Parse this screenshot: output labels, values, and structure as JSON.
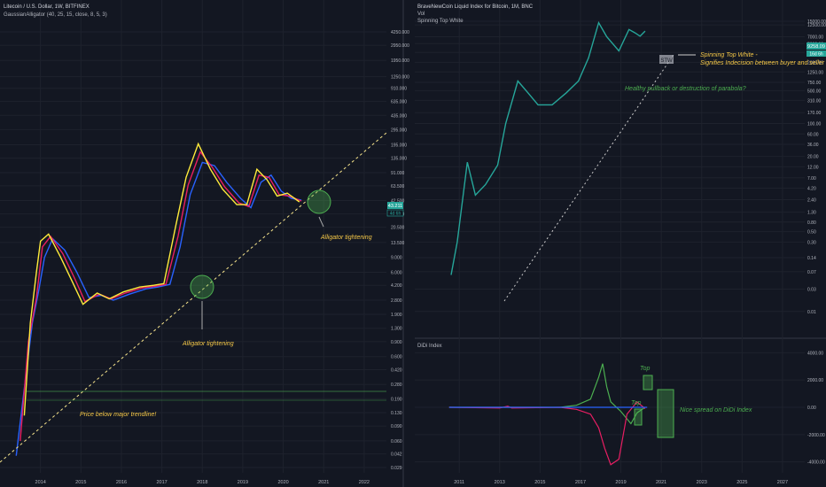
{
  "chart_data": [
    {
      "type": "line",
      "title": "Litecoin / U.S. Dollar, 1W, BITFINEX",
      "subtitle": "GaussianAlligator (40, 25, 15, close, 8, 5, 3)",
      "xlabel": "",
      "ylabel": "",
      "log_scale": true,
      "grid": true,
      "price_ticks": [
        "4250.000",
        "2950.000",
        "1950.000",
        "1250.000",
        "910.000",
        "635.000",
        "435.000",
        "295.000",
        "195.000",
        "135.000",
        "91.000",
        "63.500",
        "42.500",
        "29.500",
        "20.500",
        "13.500",
        "9.000",
        "6.000",
        "4.200",
        "2.800",
        "1.900",
        "1.300",
        "0.900",
        "0.600",
        "0.420",
        "0.280",
        "0.190",
        "0.130",
        "0.090",
        "0.060",
        "0.042",
        "0.029"
      ],
      "x_ticks": [
        "2014",
        "2015",
        "2016",
        "2017",
        "2018",
        "2019",
        "2020",
        "2021",
        "2022"
      ],
      "last_price": "43.211",
      "last_countdown": "4d 6h",
      "series": [
        {
          "name": "",
          "color": "#2962ff",
          "values": [
            [
              2013.4,
              0.04
            ],
            [
              2013.6,
              0.25
            ],
            [
              2013.8,
              1.5
            ],
            [
              2013.95,
              3.5
            ],
            [
              2014.1,
              9
            ],
            [
              2014.3,
              15
            ],
            [
              2014.6,
              11
            ],
            [
              2014.9,
              6
            ],
            [
              2015.2,
              3
            ],
            [
              2015.5,
              3.2
            ],
            [
              2015.8,
              2.8
            ],
            [
              2016.2,
              3.3
            ],
            [
              2016.6,
              3.8
            ],
            [
              2016.9,
              4.0
            ],
            [
              2017.2,
              4.3
            ],
            [
              2017.45,
              12
            ],
            [
              2017.7,
              50
            ],
            [
              2018.0,
              120
            ],
            [
              2018.3,
              110
            ],
            [
              2018.6,
              70
            ],
            [
              2018.95,
              45
            ],
            [
              2019.2,
              35
            ],
            [
              2019.45,
              70
            ],
            [
              2019.7,
              85
            ],
            [
              2019.95,
              55
            ],
            [
              2020.2,
              45
            ],
            [
              2020.45,
              43
            ]
          ]
        },
        {
          "name": "",
          "color": "#e91e63",
          "values": [
            [
              2013.5,
              0.06
            ],
            [
              2013.7,
              0.9
            ],
            [
              2013.9,
              3
            ],
            [
              2014.05,
              12
            ],
            [
              2014.25,
              16
            ],
            [
              2014.55,
              10
            ],
            [
              2014.85,
              5
            ],
            [
              2015.1,
              2.7
            ],
            [
              2015.45,
              3.3
            ],
            [
              2015.75,
              2.9
            ],
            [
              2016.1,
              3.4
            ],
            [
              2016.5,
              3.9
            ],
            [
              2016.85,
              4.1
            ],
            [
              2017.1,
              4.3
            ],
            [
              2017.4,
              16
            ],
            [
              2017.65,
              65
            ],
            [
              2017.95,
              160
            ],
            [
              2018.25,
              105
            ],
            [
              2018.55,
              62
            ],
            [
              2018.9,
              40
            ],
            [
              2019.15,
              36
            ],
            [
              2019.4,
              85
            ],
            [
              2019.65,
              80
            ],
            [
              2019.9,
              50
            ],
            [
              2020.15,
              48
            ],
            [
              2020.45,
              42
            ]
          ]
        },
        {
          "name": "",
          "color": "#ffeb3b",
          "values": [
            [
              2013.6,
              0.12
            ],
            [
              2013.75,
              1.5
            ],
            [
              2013.9,
              6
            ],
            [
              2014.0,
              14
            ],
            [
              2014.2,
              17
            ],
            [
              2014.5,
              9
            ],
            [
              2014.8,
              4.5
            ],
            [
              2015.05,
              2.5
            ],
            [
              2015.4,
              3.4
            ],
            [
              2015.7,
              2.9
            ],
            [
              2016.05,
              3.5
            ],
            [
              2016.45,
              4.0
            ],
            [
              2016.8,
              4.2
            ],
            [
              2017.05,
              4.4
            ],
            [
              2017.35,
              22
            ],
            [
              2017.6,
              80
            ],
            [
              2017.9,
              200
            ],
            [
              2018.2,
              100
            ],
            [
              2018.5,
              58
            ],
            [
              2018.85,
              38
            ],
            [
              2019.1,
              38
            ],
            [
              2019.35,
              100
            ],
            [
              2019.6,
              75
            ],
            [
              2019.85,
              48
            ],
            [
              2020.1,
              52
            ],
            [
              2020.4,
              41
            ]
          ]
        }
      ],
      "annotations": [
        "Alligator tightening",
        "Alligator tightening",
        "Price below major trendline!"
      ]
    },
    {
      "type": "line",
      "title": "BraveNewCoin Liquid Index for Bitcoin, 1M, BNC",
      "subtitle": "Vol",
      "legend_extra": "Spinning Top White",
      "log_scale": true,
      "grid": true,
      "price_ticks": [
        "15000.00",
        "12500.00",
        "7000.00",
        "5000.00",
        "3250.00",
        "2000.00",
        "1250.00",
        "750.00",
        "500.00",
        "310.00",
        "170.00",
        "100.00",
        "60.00",
        "36.00",
        "20.00",
        "12.00",
        "7.00",
        "4.20",
        "2.40",
        "1.30",
        "0.80",
        "0.50",
        "0.30",
        "0.14",
        "0.07",
        "0.03",
        "0.01"
      ],
      "x_ticks": [
        "2011",
        "2013",
        "2015",
        "2017",
        "2019",
        "2021",
        "2023",
        "2025",
        "2027"
      ],
      "last_price": "9258.09",
      "last_countdown": "16d 6h",
      "marker_label": "STW",
      "series": [
        {
          "name": "",
          "color": "#26a69a",
          "values": [
            [
              2010.6,
              0.06
            ],
            [
              2010.9,
              0.3
            ],
            [
              2011.4,
              15
            ],
            [
              2011.8,
              3
            ],
            [
              2012.3,
              5
            ],
            [
              2012.9,
              13
            ],
            [
              2013.3,
              100
            ],
            [
              2013.9,
              800
            ],
            [
              2014.4,
              450
            ],
            [
              2014.9,
              250
            ],
            [
              2015.6,
              250
            ],
            [
              2016.3,
              450
            ],
            [
              2016.9,
              800
            ],
            [
              2017.4,
              2500
            ],
            [
              2017.9,
              14000
            ],
            [
              2018.3,
              7000
            ],
            [
              2018.9,
              3500
            ],
            [
              2019.4,
              10000
            ],
            [
              2019.7,
              8500
            ],
            [
              2019.95,
              7200
            ],
            [
              2020.2,
              9258
            ]
          ]
        }
      ],
      "annotations": [
        "Spinning Top White -",
        "Signifies Indecision between buyer and seller",
        "Healthy pullback or destruction of parabola?"
      ]
    },
    {
      "type": "line",
      "title": "DiDi Index",
      "y_ticks": [
        "4000.00",
        "2000.00",
        "0.00",
        "-2000.00",
        "-4000.00"
      ],
      "ylim": [
        -4800,
        4800
      ],
      "series": [
        {
          "name": "",
          "color": "#4caf50",
          "values": [
            [
              2010.5,
              0
            ],
            [
              2016.0,
              0
            ],
            [
              2016.8,
              150
            ],
            [
              2017.5,
              600
            ],
            [
              2017.9,
              2200
            ],
            [
              2018.1,
              3200
            ],
            [
              2018.3,
              1500
            ],
            [
              2018.5,
              400
            ],
            [
              2019.0,
              -300
            ],
            [
              2019.5,
              -1200
            ],
            [
              2019.8,
              -400
            ],
            [
              2020.2,
              0
            ]
          ]
        },
        {
          "name": "",
          "color": "#e91e63",
          "values": [
            [
              2010.5,
              0
            ],
            [
              2013.0,
              -50
            ],
            [
              2013.4,
              80
            ],
            [
              2013.6,
              -50
            ],
            [
              2016.0,
              0
            ],
            [
              2016.8,
              -150
            ],
            [
              2017.5,
              -500
            ],
            [
              2017.9,
              -1500
            ],
            [
              2018.2,
              -3000
            ],
            [
              2018.5,
              -4200
            ],
            [
              2018.9,
              -3800
            ],
            [
              2019.3,
              -500
            ],
            [
              2019.8,
              400
            ],
            [
              2020.2,
              -100
            ]
          ]
        },
        {
          "name": "",
          "color": "#2962ff",
          "values": [
            [
              2010.5,
              0
            ],
            [
              2020.3,
              0
            ]
          ]
        }
      ],
      "annotations": [
        "Top",
        "Top",
        "Nice spread on DiDi Index"
      ]
    }
  ],
  "colors": {
    "background": "#131722",
    "grid": "#2a2e39",
    "text": "#b2b5be",
    "annotation": "#f7c948",
    "annotation_green": "#4caf50",
    "teal": "#26a69a"
  }
}
